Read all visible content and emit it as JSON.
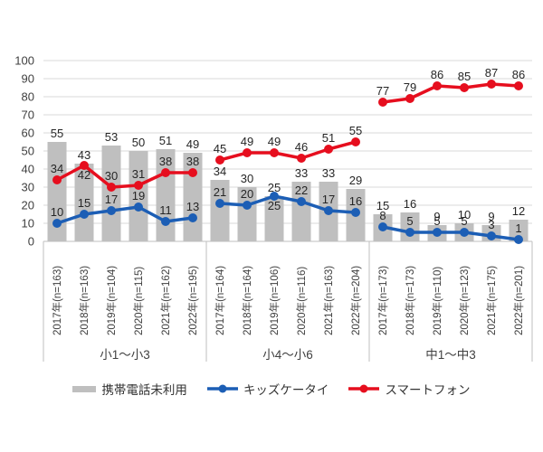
{
  "legend": {
    "items": [
      {
        "label": "携帯電話未利用",
        "type": "bar",
        "color": "#bfbfbf"
      },
      {
        "label": "キッズケータイ",
        "type": "line",
        "color": "#1c5eb5"
      },
      {
        "label": "スマートフォン",
        "type": "line",
        "color": "#e60e1e"
      }
    ]
  },
  "chart_data": {
    "type": "bar",
    "subtype": "combo-bar-line",
    "title": "",
    "xlabel": "",
    "ylabel": "",
    "y_axis": {
      "min": 0,
      "max": 100,
      "step": 10
    },
    "grid": true,
    "legend_position": "bottom",
    "group_labels": [
      "小1〜小3",
      "小4〜小6",
      "中1〜中3"
    ],
    "categories": [
      [
        "2017年(n=163)",
        "2018年(n=163)",
        "2019年(n=104)",
        "2020年(n=115)",
        "2021年(n=162)",
        "2022年(n=195)"
      ],
      [
        "2017年(n=164)",
        "2018年(n=164)",
        "2019年(n=106)",
        "2020年(n=116)",
        "2021年(n=163)",
        "2022年(n=204)"
      ],
      [
        "2017年(n=173)",
        "2018年(n=173)",
        "2019年(n=110)",
        "2020年(n=123)",
        "2021年(n=175)",
        "2022年(n=201)"
      ]
    ],
    "series": [
      {
        "name": "携帯電話未利用",
        "type": "bar",
        "color": "#bfbfbf",
        "values": [
          [
            55,
            43,
            53,
            50,
            51,
            49
          ],
          [
            34,
            30,
            25,
            33,
            33,
            29
          ],
          [
            15,
            16,
            9,
            10,
            9,
            12
          ]
        ]
      },
      {
        "name": "キッズケータイ",
        "type": "line",
        "color": "#1c5eb5",
        "values": [
          [
            10,
            15,
            17,
            19,
            11,
            13
          ],
          [
            21,
            20,
            25,
            22,
            17,
            16
          ],
          [
            8,
            5,
            5,
            5,
            3,
            1
          ]
        ]
      },
      {
        "name": "スマートフォン",
        "type": "line",
        "color": "#e60e1e",
        "values": [
          [
            34,
            42,
            30,
            31,
            38,
            38
          ],
          [
            45,
            49,
            49,
            46,
            51,
            55
          ],
          [
            77,
            79,
            86,
            85,
            87,
            86
          ]
        ]
      }
    ],
    "label_below_points": [
      {
        "series": "スマートフォン",
        "group": 0,
        "index": 1
      },
      {
        "series": "キッズケータイ",
        "group": 1,
        "index": 2
      }
    ]
  }
}
